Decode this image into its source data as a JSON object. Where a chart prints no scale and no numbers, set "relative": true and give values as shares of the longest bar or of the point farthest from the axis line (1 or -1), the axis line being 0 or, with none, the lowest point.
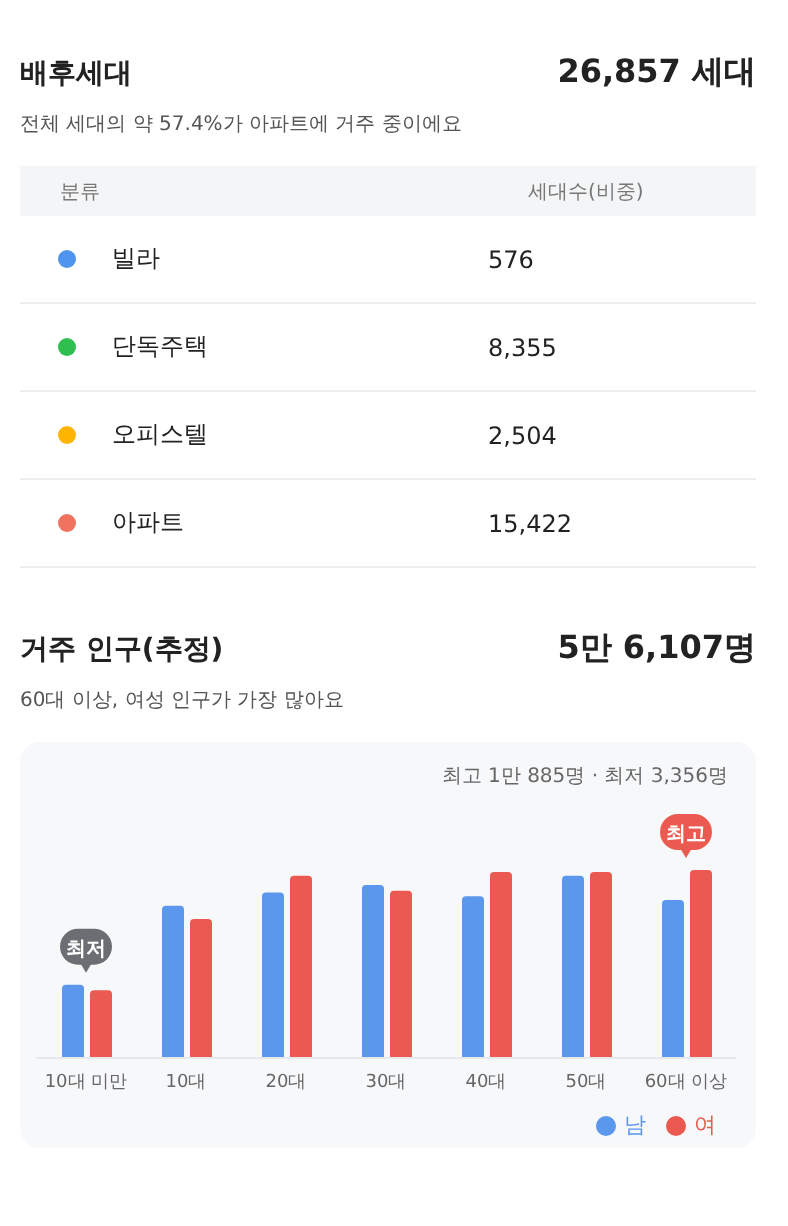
{
  "chart_data": [
    {
      "type": "other",
      "title": "배후세대",
      "subtitle": "전체 세대의 약 57.4%가 아파트에 거주 중이에요",
      "annotations": [
        "26,857 세대",
        "분류",
        "세대수(비중)"
      ],
      "categories": [
        "빌라",
        "단독주택",
        "오피스텔",
        "아파트"
      ],
      "colors": [
        "#4f94ef",
        "#2fbf4f",
        "#ffb400",
        "#f0735f"
      ],
      "value_labels": [
        "576",
        "8,355",
        "2,504",
        "15,422"
      ]
    },
    {
      "type": "bar",
      "title": "거주 인구(추정)",
      "subtitle": "60대 이상, 여성 인구가 가장 많아요",
      "relative": true,
      "categories": [
        "10대 미만",
        "10대",
        "20대",
        "30대",
        "40대",
        "50대",
        "60대 이상"
      ],
      "series": [
        {
          "name": "남",
          "color": "#5b97ec",
          "values": [
            0.39,
            0.81,
            0.88,
            0.92,
            0.86,
            0.97,
            0.84
          ]
        },
        {
          "name": "여",
          "color": "#eb5a50",
          "values": [
            0.36,
            0.74,
            0.97,
            0.89,
            0.99,
            0.99,
            1.0
          ]
        }
      ],
      "annotations": [
        "5만 6,107명",
        "최고 1만 885명 · 최저 3,356명",
        {
          "text": "최저",
          "x": "10대 미만",
          "y": 0.39
        },
        {
          "text": "최고",
          "x": "60대 이상",
          "y": 1.0
        }
      ],
      "legend": "bottom right"
    }
  ]
}
